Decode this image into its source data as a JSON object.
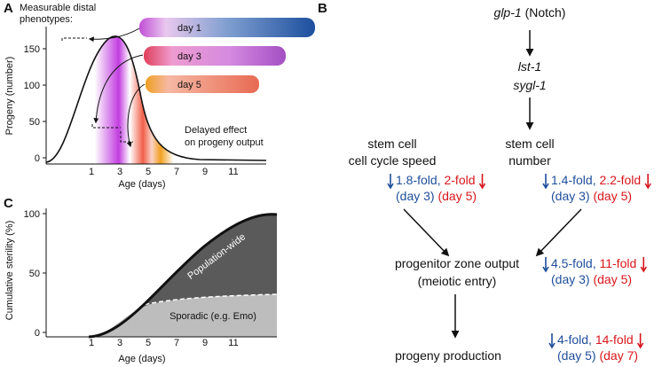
{
  "panel_a": {
    "label": "A",
    "note_top": [
      "Measurable distal",
      "phenotypes:"
    ],
    "worms": [
      "day 1",
      "day 3",
      "day 5"
    ],
    "note_delayed": [
      "Delayed effect",
      "on progeny output"
    ],
    "y_axis_title": "Progeny (number)",
    "x_axis_title": "Age (days)",
    "yticks": [
      0,
      50,
      100,
      150
    ],
    "xticks": [
      1,
      3,
      5,
      7,
      9,
      11
    ]
  },
  "panel_b": {
    "label": "B",
    "top": {
      "gene": "glp-1",
      "note": "(Notch)"
    },
    "genes": [
      "lst-1",
      "sygl-1"
    ],
    "left_node": [
      "stem cell",
      "cell cycle speed"
    ],
    "right_node": [
      "stem cell",
      "number"
    ],
    "middle_node": [
      "progenitor zone output",
      "(meiotic entry)"
    ],
    "bottom_node": "progeny production",
    "folds": [
      {
        "blue": "1.8-fold,",
        "red": "2-fold",
        "day_blue": "(day 3)",
        "day_red": "(day 5)"
      },
      {
        "blue": "1.4-fold,",
        "red": "2.2-fold",
        "day_blue": "(day 3)",
        "day_red": "(day 5)"
      },
      {
        "blue": "4.5-fold,",
        "red": "11-fold",
        "day_blue": "(day 3)",
        "day_red": "(day 5)"
      },
      {
        "blue": "4-fold,",
        "red": "14-fold",
        "day_blue": "(day 5)",
        "day_red": "(day 7)"
      }
    ]
  },
  "panel_c": {
    "label": "C",
    "y_axis_title": "Cumulative sterility (%)",
    "x_axis_title": "Age (days)",
    "yticks": [
      0,
      50,
      100
    ],
    "xticks": [
      1,
      3,
      5,
      7,
      9,
      11
    ],
    "area_labels": [
      "Population-wide",
      "Sporadic (e.g. Emo)"
    ]
  }
}
